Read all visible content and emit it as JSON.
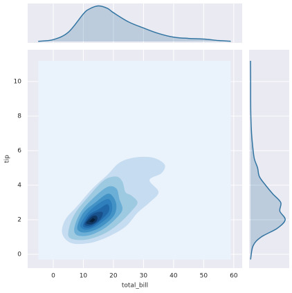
{
  "chart_data": {
    "type": "jointkde",
    "xlabel": "total_bill",
    "ylabel": "tip",
    "xlim": [
      -8.5,
      62.8
    ],
    "ylim": [
      -0.8,
      11.84
    ],
    "xticks": [
      0,
      10,
      20,
      30,
      40,
      50,
      60
    ],
    "yticks": [
      0,
      2,
      4,
      6,
      8,
      10
    ],
    "grid": true,
    "contours": [
      {
        "color": "#eaf2fb",
        "x": [
          -5,
          59,
          59,
          -5
        ],
        "y": [
          -0.3,
          -0.3,
          11.2,
          11.2
        ]
      },
      {
        "color": "#c6dcf0",
        "x": [
          3,
          4,
          8,
          13,
          18,
          22,
          27,
          33,
          37,
          36,
          32,
          35,
          32,
          28,
          24,
          18,
          12,
          6
        ],
        "y": [
          1.2,
          2,
          2.8,
          3.8,
          4.6,
          5.3,
          5.6,
          5.6,
          5.2,
          4.7,
          4.3,
          3.6,
          3.0,
          2.4,
          1.6,
          1.0,
          0.65,
          0.65
        ]
      },
      {
        "color": "#9ecae1",
        "x": [
          5,
          7,
          12,
          17,
          21,
          23,
          24,
          26,
          28,
          26,
          22,
          17,
          11,
          6
        ],
        "y": [
          1.3,
          2.3,
          3.4,
          4.3,
          4.5,
          4.2,
          3.6,
          3.4,
          3.0,
          2.5,
          1.8,
          1.2,
          0.85,
          0.9
        ]
      },
      {
        "color": "#6baed6",
        "x": [
          7,
          9,
          13,
          18,
          21,
          22,
          23,
          21,
          17,
          12,
          8
        ],
        "y": [
          1.5,
          2.4,
          3.2,
          3.9,
          3.8,
          3.2,
          2.6,
          2.1,
          1.5,
          1.1,
          1.1
        ]
      },
      {
        "color": "#4292c6",
        "x": [
          8,
          10,
          14,
          18,
          20,
          21,
          20,
          16,
          12,
          9
        ],
        "y": [
          1.6,
          2.4,
          3.0,
          3.5,
          3.3,
          2.8,
          2.2,
          1.6,
          1.3,
          1.3
        ]
      },
      {
        "color": "#2f7fbd",
        "x": [
          9,
          11,
          14,
          18,
          19.5,
          19,
          15,
          12,
          10
        ],
        "y": [
          1.7,
          2.3,
          2.8,
          3.2,
          2.9,
          2.3,
          1.7,
          1.45,
          1.45
        ]
      },
      {
        "color": "#2168a8",
        "x": [
          10,
          12,
          15,
          18,
          18.5,
          16,
          13,
          10.5
        ],
        "y": [
          1.75,
          2.3,
          2.6,
          2.9,
          2.5,
          2.0,
          1.6,
          1.55
        ]
      },
      {
        "color": "#17508a",
        "x": [
          10.5,
          12.5,
          15,
          16.5,
          15.5,
          13,
          11
        ],
        "y": [
          1.8,
          2.25,
          2.45,
          2.4,
          2.0,
          1.7,
          1.65
        ]
      },
      {
        "color": "#0f3660",
        "x": [
          11,
          13,
          14.5,
          14.5,
          13,
          11.5
        ],
        "y": [
          1.85,
          2.2,
          2.2,
          1.95,
          1.75,
          1.75
        ]
      },
      {
        "color": "#081d36",
        "x": [
          12,
          13.2,
          14,
          13
        ],
        "y": [
          1.9,
          2.1,
          2.0,
          1.85
        ]
      }
    ],
    "marginal_x": {
      "color": "#3274a1",
      "x": [
        -5,
        0,
        5,
        10,
        12,
        15,
        18,
        20,
        25,
        30,
        35,
        40,
        45,
        50,
        55,
        59
      ],
      "density": [
        0.0003,
        0.003,
        0.015,
        0.045,
        0.053,
        0.058,
        0.054,
        0.047,
        0.032,
        0.022,
        0.013,
        0.007,
        0.005,
        0.004,
        0.0015,
        0.0003
      ],
      "ylim": [
        0,
        0.062
      ]
    },
    "marginal_y": {
      "color": "#3274a1",
      "y": [
        -0.3,
        0.5,
        1,
        1.5,
        2,
        2.5,
        3,
        3.5,
        4,
        4.5,
        5,
        5.5,
        6,
        7,
        8,
        9,
        10,
        11.2
      ],
      "density": [
        0.001,
        0.03,
        0.12,
        0.3,
        0.39,
        0.33,
        0.34,
        0.25,
        0.17,
        0.1,
        0.08,
        0.045,
        0.03,
        0.012,
        0.004,
        0.002,
        0.002,
        0.0003
      ],
      "xlim": [
        0,
        0.42
      ]
    }
  }
}
